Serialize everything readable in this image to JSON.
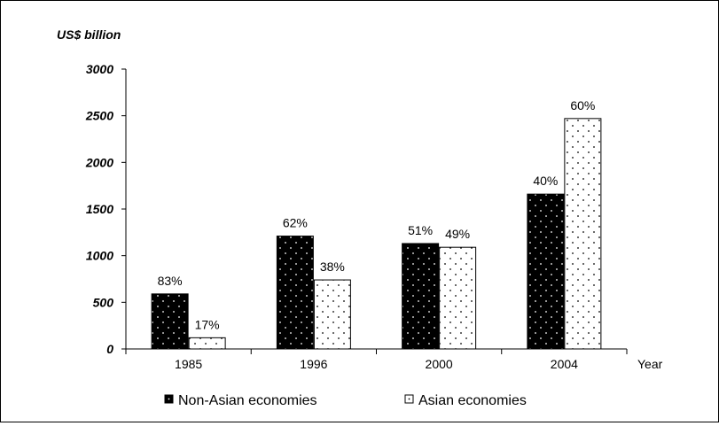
{
  "chart_data": {
    "type": "bar",
    "ylabel": "US$ billion",
    "xlabel": "Year",
    "categories": [
      "1985",
      "1996",
      "2000",
      "2004"
    ],
    "ylim": [
      0,
      3000
    ],
    "yticks": [
      0,
      500,
      1000,
      1500,
      2000,
      2500,
      3000
    ],
    "grid": false,
    "legend_position": "bottom",
    "series": [
      {
        "name": "Non-Asian economies",
        "values": [
          590,
          1210,
          1130,
          1660
        ],
        "labels": [
          "83%",
          "62%",
          "51%",
          "40%"
        ],
        "fill": "#000000",
        "dot_color": "#ffffff"
      },
      {
        "name": "Asian economies",
        "values": [
          120,
          740,
          1090,
          2470
        ],
        "labels": [
          "17%",
          "38%",
          "49%",
          "60%"
        ],
        "fill": "#ffffff",
        "dot_color": "#000000"
      }
    ]
  }
}
